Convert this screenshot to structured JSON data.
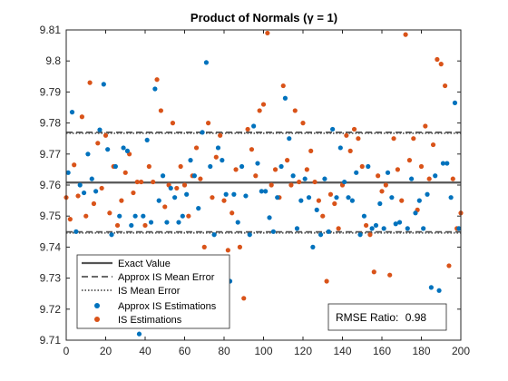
{
  "chart_data": {
    "type": "scatter",
    "title": "Product of Normals (γ = 1)",
    "xlabel": "",
    "ylabel": "",
    "xlim": [
      0,
      200
    ],
    "ylim": [
      9.71,
      9.81
    ],
    "xticks": [
      0,
      20,
      40,
      60,
      80,
      100,
      120,
      140,
      160,
      180,
      200
    ],
    "yticks": [
      9.71,
      9.72,
      9.73,
      9.74,
      9.75,
      9.76,
      9.77,
      9.78,
      9.79,
      9.8,
      9.81
    ],
    "xtick_labels": [
      "0",
      "20",
      "40",
      "60",
      "80",
      "100",
      "120",
      "140",
      "160",
      "180",
      "200"
    ],
    "ytick_labels": [
      "9.71",
      "9.72",
      "9.73",
      "9.74",
      "9.75",
      "9.76",
      "9.77",
      "9.78",
      "9.79",
      "9.8",
      "9.81"
    ],
    "grid": false,
    "legend_position": "bottom-left",
    "colors": {
      "approx_is": "#0072BD",
      "is": "#D95319",
      "lines": "#555555"
    },
    "reference_lines": [
      {
        "name": "Exact Value",
        "y": 9.7608,
        "style": "solid"
      },
      {
        "name": "Approx IS Mean Error",
        "y": [
          9.7449,
          9.777
        ],
        "style": "dashed"
      },
      {
        "name": "IS Mean Error",
        "y": [
          9.7446,
          9.7767
        ],
        "style": "dotted"
      }
    ],
    "series": [
      {
        "name": "Approx IS Estimations",
        "color": "#0072BD",
        "x": [
          1,
          3,
          5,
          7,
          9,
          11,
          13,
          15,
          17,
          19,
          21,
          23,
          25,
          27,
          29,
          31,
          33,
          35,
          37,
          39,
          41,
          43,
          45,
          47,
          49,
          51,
          53,
          55,
          57,
          59,
          61,
          63,
          65,
          67,
          69,
          71,
          73,
          75,
          77,
          79,
          81,
          83,
          85,
          87,
          89,
          91,
          93,
          95,
          97,
          99,
          101,
          103,
          105,
          107,
          109,
          111,
          113,
          115,
          117,
          119,
          121,
          123,
          125,
          127,
          129,
          131,
          133,
          135,
          137,
          139,
          141,
          143,
          145,
          147,
          149,
          151,
          153,
          155,
          157,
          159,
          161,
          163,
          165,
          167,
          169,
          171,
          173,
          175,
          177,
          179,
          181,
          183,
          185,
          187,
          189,
          191,
          193,
          195,
          197,
          199
        ],
        "y": [
          9.764,
          9.7835,
          9.745,
          9.76,
          9.7575,
          9.77,
          9.762,
          9.758,
          9.7778,
          9.7925,
          9.7715,
          9.744,
          9.766,
          9.75,
          9.772,
          9.771,
          9.747,
          9.75,
          9.712,
          9.75,
          9.7745,
          9.748,
          9.791,
          9.755,
          9.763,
          9.748,
          9.759,
          9.756,
          9.748,
          9.75,
          9.757,
          9.768,
          9.763,
          9.7525,
          9.777,
          9.7995,
          9.766,
          9.744,
          9.772,
          9.768,
          9.757,
          9.729,
          9.757,
          9.748,
          9.766,
          9.7565,
          9.744,
          9.779,
          9.767,
          9.758,
          9.758,
          9.7495,
          9.745,
          9.756,
          9.766,
          9.788,
          9.775,
          9.763,
          9.746,
          9.755,
          9.762,
          9.756,
          9.74,
          9.752,
          9.744,
          9.762,
          9.745,
          9.778,
          9.756,
          9.772,
          9.761,
          9.756,
          9.755,
          9.764,
          9.744,
          9.75,
          9.766,
          9.746,
          9.747,
          9.754,
          9.746,
          9.764,
          9.756,
          9.7475,
          9.748,
          9.72,
          9.746,
          9.762,
          9.751,
          9.755,
          9.746,
          9.757,
          9.727,
          9.763,
          9.726,
          9.767,
          9.767,
          9.756,
          9.7865,
          9.746
        ]
      },
      {
        "name": "IS Estimations",
        "color": "#D95319",
        "x": [
          0,
          2,
          4,
          6,
          8,
          10,
          12,
          14,
          16,
          18,
          20,
          22,
          24,
          26,
          28,
          30,
          32,
          34,
          36,
          38,
          40,
          42,
          44,
          46,
          48,
          50,
          52,
          54,
          56,
          58,
          60,
          62,
          64,
          66,
          68,
          70,
          72,
          74,
          76,
          78,
          80,
          82,
          84,
          86,
          88,
          90,
          92,
          94,
          96,
          98,
          100,
          102,
          104,
          106,
          108,
          110,
          112,
          114,
          116,
          118,
          120,
          122,
          124,
          126,
          128,
          130,
          132,
          134,
          136,
          138,
          140,
          142,
          144,
          146,
          148,
          150,
          152,
          154,
          156,
          158,
          160,
          162,
          164,
          166,
          168,
          170,
          172,
          174,
          176,
          178,
          180,
          182,
          184,
          186,
          188,
          190,
          192,
          194,
          196,
          198,
          200
        ],
        "y": [
          9.756,
          9.749,
          9.7665,
          9.7565,
          9.782,
          9.75,
          9.793,
          9.754,
          9.7735,
          9.759,
          9.776,
          9.751,
          9.766,
          9.747,
          9.755,
          9.764,
          9.77,
          9.7575,
          9.761,
          9.761,
          9.747,
          9.766,
          9.761,
          9.794,
          9.784,
          9.753,
          9.76,
          9.78,
          9.759,
          9.766,
          9.76,
          9.75,
          9.763,
          9.772,
          9.762,
          9.74,
          9.78,
          9.756,
          9.769,
          9.776,
          9.755,
          9.739,
          9.751,
          9.765,
          9.74,
          9.7235,
          9.778,
          9.7715,
          9.763,
          9.784,
          9.786,
          9.809,
          9.76,
          9.765,
          9.756,
          9.792,
          9.768,
          9.76,
          9.784,
          9.761,
          9.78,
          9.765,
          9.771,
          9.761,
          9.755,
          9.75,
          9.729,
          9.757,
          9.754,
          9.746,
          9.76,
          9.776,
          9.771,
          9.778,
          9.775,
          9.766,
          9.747,
          9.744,
          9.732,
          9.763,
          9.758,
          9.76,
          9.731,
          9.775,
          9.765,
          9.755,
          9.8085,
          9.768,
          9.775,
          9.752,
          9.766,
          9.779,
          9.762,
          9.773,
          9.8005,
          9.799,
          9.792,
          9.734,
          9.762,
          9.746,
          9.751
        ]
      }
    ],
    "annotation": {
      "label": "RMSE Ratio:",
      "value": "0.98"
    }
  }
}
